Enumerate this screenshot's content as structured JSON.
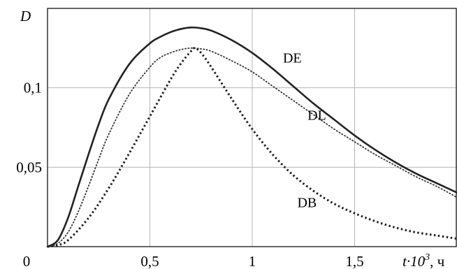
{
  "chart_data": {
    "type": "line",
    "ylabel": "D",
    "xlabel_main": "t·10",
    "xlabel_exp": "3",
    "xlabel_unit": ", ч",
    "xlim": [
      0,
      2.0
    ],
    "ylim": [
      0,
      0.15
    ],
    "grid": true,
    "x_ticks": [
      {
        "value": 0,
        "label": "0"
      },
      {
        "value": 0.5,
        "label": "0,5"
      },
      {
        "value": 1.0,
        "label": "1"
      },
      {
        "value": 1.5,
        "label": "1,5"
      }
    ],
    "y_ticks": [
      {
        "value": 0.05,
        "label": "0,05"
      },
      {
        "value": 0.1,
        "label": "0,1"
      }
    ],
    "series": [
      {
        "name": "DE",
        "style": "solid",
        "color": "#222222",
        "label_at": [
          1.15,
          0.119
        ],
        "x": [
          0,
          0.05,
          0.1,
          0.15,
          0.2,
          0.25,
          0.3,
          0.4,
          0.5,
          0.55,
          0.6,
          0.65,
          0.7,
          0.75,
          0.8,
          0.9,
          1.0,
          1.1,
          1.2,
          1.3,
          1.4,
          1.5,
          1.6,
          1.7,
          1.8,
          1.9,
          2.0
        ],
        "y": [
          0,
          0.004,
          0.018,
          0.038,
          0.058,
          0.077,
          0.093,
          0.115,
          0.128,
          0.132,
          0.135,
          0.137,
          0.138,
          0.1375,
          0.136,
          0.13,
          0.122,
          0.112,
          0.101,
          0.09,
          0.08,
          0.07,
          0.061,
          0.053,
          0.046,
          0.04,
          0.034
        ]
      },
      {
        "name": "DL",
        "style": "dotted",
        "color": "#333333",
        "label_at": [
          1.27,
          0.083
        ],
        "x": [
          0,
          0.05,
          0.1,
          0.15,
          0.2,
          0.25,
          0.3,
          0.4,
          0.5,
          0.55,
          0.6,
          0.65,
          0.7,
          0.75,
          0.8,
          0.9,
          1.0,
          1.1,
          1.2,
          1.3,
          1.4,
          1.5,
          1.6,
          1.7,
          1.8,
          1.9,
          2.0
        ],
        "y": [
          0,
          0.002,
          0.009,
          0.022,
          0.038,
          0.055,
          0.071,
          0.096,
          0.113,
          0.119,
          0.122,
          0.124,
          0.125,
          0.1245,
          0.123,
          0.117,
          0.11,
          0.101,
          0.092,
          0.083,
          0.074,
          0.066,
          0.058,
          0.051,
          0.044,
          0.038,
          0.031
        ]
      },
      {
        "name": "DB",
        "style": "dashed",
        "color": "#222222",
        "label_at": [
          1.22,
          0.028
        ],
        "x": [
          0,
          0.05,
          0.1,
          0.2,
          0.3,
          0.4,
          0.5,
          0.6,
          0.65,
          0.7,
          0.72,
          0.75,
          0.8,
          0.9,
          1.0,
          1.1,
          1.2,
          1.3,
          1.4,
          1.5,
          1.6,
          1.7,
          1.8,
          1.9,
          2.0
        ],
        "y": [
          0,
          0.001,
          0.004,
          0.018,
          0.037,
          0.059,
          0.082,
          0.105,
          0.115,
          0.123,
          0.125,
          0.122,
          0.113,
          0.093,
          0.074,
          0.058,
          0.045,
          0.035,
          0.027,
          0.021,
          0.016,
          0.012,
          0.009,
          0.007,
          0.005
        ]
      }
    ]
  }
}
